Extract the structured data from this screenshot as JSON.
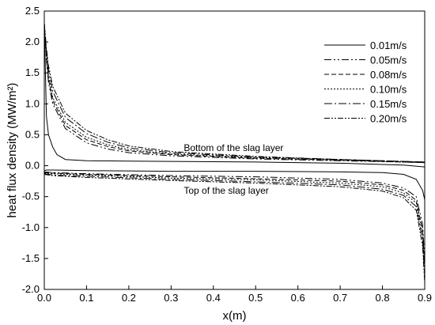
{
  "chart_data": {
    "type": "line",
    "title": "",
    "xlabel": "x(m)",
    "ylabel": "heat flux density (MW/m²)",
    "xlim": [
      0.0,
      0.9
    ],
    "ylim": [
      -2.0,
      2.5
    ],
    "xticks": [
      0.0,
      0.1,
      0.2,
      0.3,
      0.4,
      0.5,
      0.6,
      0.7,
      0.8,
      0.9
    ],
    "xtick_labels": [
      "0.0",
      "0.1",
      "0.2",
      "0.3",
      "0.4",
      "0.5",
      "0.6",
      "0.7",
      "0.8",
      "0.9"
    ],
    "yticks": [
      -2.0,
      -1.5,
      -1.0,
      -0.5,
      0.0,
      0.5,
      1.0,
      1.5,
      2.0,
      2.5
    ],
    "ytick_labels": [
      "-2.0",
      "-1.5",
      "-1.0",
      "-0.5",
      "0.0",
      "0.5",
      "1.0",
      "1.5",
      "2.0",
      "2.5"
    ],
    "grid": false,
    "legend_position": "top-right",
    "annotations": [
      {
        "text": "Bottom of the slag layer",
        "x": 0.33,
        "y": 0.24
      },
      {
        "text": "Top of the slag layer",
        "x": 0.33,
        "y": -0.45
      }
    ],
    "series": [
      {
        "name": "0.01m/s",
        "dash": "solid",
        "bottom": {
          "x": [
            0.0,
            0.005,
            0.01,
            0.02,
            0.03,
            0.05,
            0.1,
            0.2,
            0.3,
            0.5,
            0.7,
            0.85,
            0.9
          ],
          "y": [
            2.3,
            0.8,
            0.5,
            0.3,
            0.18,
            0.1,
            0.08,
            0.075,
            0.07,
            0.06,
            0.04,
            0.01,
            -0.02
          ]
        },
        "top": {
          "x": [
            0.0,
            0.005,
            0.02,
            0.1,
            0.3,
            0.5,
            0.7,
            0.8,
            0.85,
            0.88,
            0.895,
            0.9
          ],
          "y": [
            -0.08,
            -0.07,
            -0.07,
            -0.08,
            -0.09,
            -0.09,
            -0.1,
            -0.11,
            -0.14,
            -0.22,
            -0.4,
            -0.55
          ]
        }
      },
      {
        "name": "0.05m/s",
        "dash": "9,3,2,3,2,3",
        "bottom": {
          "x": [
            0.0,
            0.005,
            0.01,
            0.02,
            0.05,
            0.1,
            0.15,
            0.2,
            0.3,
            0.5,
            0.7,
            0.85,
            0.9
          ],
          "y": [
            2.3,
            1.7,
            1.35,
            1.0,
            0.6,
            0.37,
            0.27,
            0.21,
            0.16,
            0.11,
            0.08,
            0.06,
            0.05
          ]
        },
        "top": {
          "x": [
            0.0,
            0.02,
            0.1,
            0.3,
            0.5,
            0.7,
            0.8,
            0.85,
            0.88,
            0.895,
            0.9
          ],
          "y": [
            -0.1,
            -0.11,
            -0.13,
            -0.16,
            -0.18,
            -0.22,
            -0.28,
            -0.36,
            -0.5,
            -0.95,
            -1.55
          ]
        }
      },
      {
        "name": "0.08m/s",
        "dash": "6,3",
        "bottom": {
          "x": [
            0.0,
            0.005,
            0.01,
            0.02,
            0.05,
            0.1,
            0.15,
            0.2,
            0.3,
            0.5,
            0.7,
            0.85,
            0.9
          ],
          "y": [
            2.3,
            1.75,
            1.4,
            1.05,
            0.65,
            0.42,
            0.31,
            0.24,
            0.18,
            0.12,
            0.09,
            0.06,
            0.05
          ]
        },
        "top": {
          "x": [
            0.0,
            0.02,
            0.1,
            0.3,
            0.5,
            0.7,
            0.8,
            0.85,
            0.88,
            0.895,
            0.9
          ],
          "y": [
            -0.11,
            -0.12,
            -0.14,
            -0.18,
            -0.21,
            -0.25,
            -0.31,
            -0.4,
            -0.56,
            -1.05,
            -1.65
          ]
        }
      },
      {
        "name": "0.10m/s",
        "dash": "2,2",
        "bottom": {
          "x": [
            0.0,
            0.005,
            0.01,
            0.02,
            0.05,
            0.1,
            0.15,
            0.2,
            0.3,
            0.5,
            0.7,
            0.85,
            0.9
          ],
          "y": [
            2.3,
            1.8,
            1.45,
            1.1,
            0.7,
            0.46,
            0.34,
            0.26,
            0.19,
            0.13,
            0.09,
            0.06,
            0.05
          ]
        },
        "top": {
          "x": [
            0.0,
            0.02,
            0.1,
            0.3,
            0.5,
            0.7,
            0.8,
            0.85,
            0.88,
            0.895,
            0.9
          ],
          "y": [
            -0.12,
            -0.13,
            -0.15,
            -0.2,
            -0.23,
            -0.28,
            -0.34,
            -0.44,
            -0.6,
            -1.1,
            -1.7
          ]
        }
      },
      {
        "name": "0.15m/s",
        "dash": "10,3,2,3",
        "bottom": {
          "x": [
            0.0,
            0.005,
            0.01,
            0.02,
            0.05,
            0.1,
            0.15,
            0.2,
            0.3,
            0.5,
            0.7,
            0.85,
            0.9
          ],
          "y": [
            2.3,
            1.85,
            1.55,
            1.2,
            0.78,
            0.52,
            0.38,
            0.29,
            0.21,
            0.14,
            0.1,
            0.07,
            0.06
          ]
        },
        "top": {
          "x": [
            0.0,
            0.02,
            0.1,
            0.3,
            0.5,
            0.7,
            0.8,
            0.85,
            0.88,
            0.895,
            0.9
          ],
          "y": [
            -0.13,
            -0.15,
            -0.17,
            -0.22,
            -0.26,
            -0.31,
            -0.38,
            -0.48,
            -0.66,
            -1.2,
            -1.8
          ]
        }
      },
      {
        "name": "0.20m/s",
        "dash": "7,2,2,2,2,2",
        "bottom": {
          "x": [
            0.0,
            0.005,
            0.01,
            0.02,
            0.05,
            0.1,
            0.15,
            0.2,
            0.3,
            0.5,
            0.7,
            0.85,
            0.9
          ],
          "y": [
            2.3,
            1.9,
            1.62,
            1.28,
            0.85,
            0.57,
            0.42,
            0.32,
            0.23,
            0.15,
            0.1,
            0.07,
            0.06
          ]
        },
        "top": {
          "x": [
            0.0,
            0.02,
            0.1,
            0.3,
            0.5,
            0.7,
            0.8,
            0.85,
            0.88,
            0.895,
            0.9
          ],
          "y": [
            -0.14,
            -0.16,
            -0.19,
            -0.24,
            -0.28,
            -0.34,
            -0.41,
            -0.52,
            -0.72,
            -1.3,
            -1.9
          ]
        }
      }
    ]
  }
}
